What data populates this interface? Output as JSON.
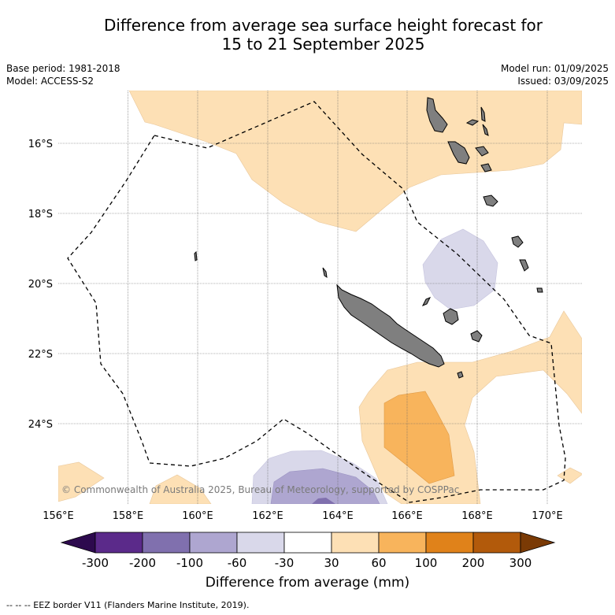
{
  "title_line1": "Difference from average sea surface height forecast for",
  "title_line2": "15 to 21 September 2025",
  "base_period": "Base period: 1981-2018",
  "model": "Model: ACCESS-S2",
  "model_run": "Model run: 01/09/2025",
  "issued": "Issued: 03/09/2025",
  "credit": "© Commonwealth of Australia 2025, Bureau of Meteorology, supported by COSPPac",
  "colorbar_label": "Difference from average (mm)",
  "footnote": "--  --  -- EEZ border V11 (Flanders Marine Institute, 2019).",
  "lon_ticks": [
    "156°E",
    "158°E",
    "160°E",
    "162°E",
    "164°E",
    "166°E",
    "168°E",
    "170°E"
  ],
  "lat_ticks": [
    "16°S",
    "18°S",
    "20°S",
    "22°S",
    "24°S"
  ],
  "colorbar": {
    "ticks": [
      "-300",
      "-200",
      "-100",
      "-60",
      "-30",
      "30",
      "60",
      "100",
      "200",
      "300"
    ],
    "colors": [
      "#2d0a4e",
      "#5b2a8a",
      "#8070ae",
      "#aea6d0",
      "#d9d8ea",
      "#ffffff",
      "#fde0b5",
      "#f8b45c",
      "#e0821a",
      "#b25a0b",
      "#7a3a05"
    ]
  },
  "colors": {
    "land": "#7f7f7f",
    "positive_light": "#fde0b5",
    "positive_mid": "#f8b45c",
    "negative_light": "#d9d8ea",
    "negative_mid": "#aea6d0",
    "negative_dark": "#8070ae"
  }
}
